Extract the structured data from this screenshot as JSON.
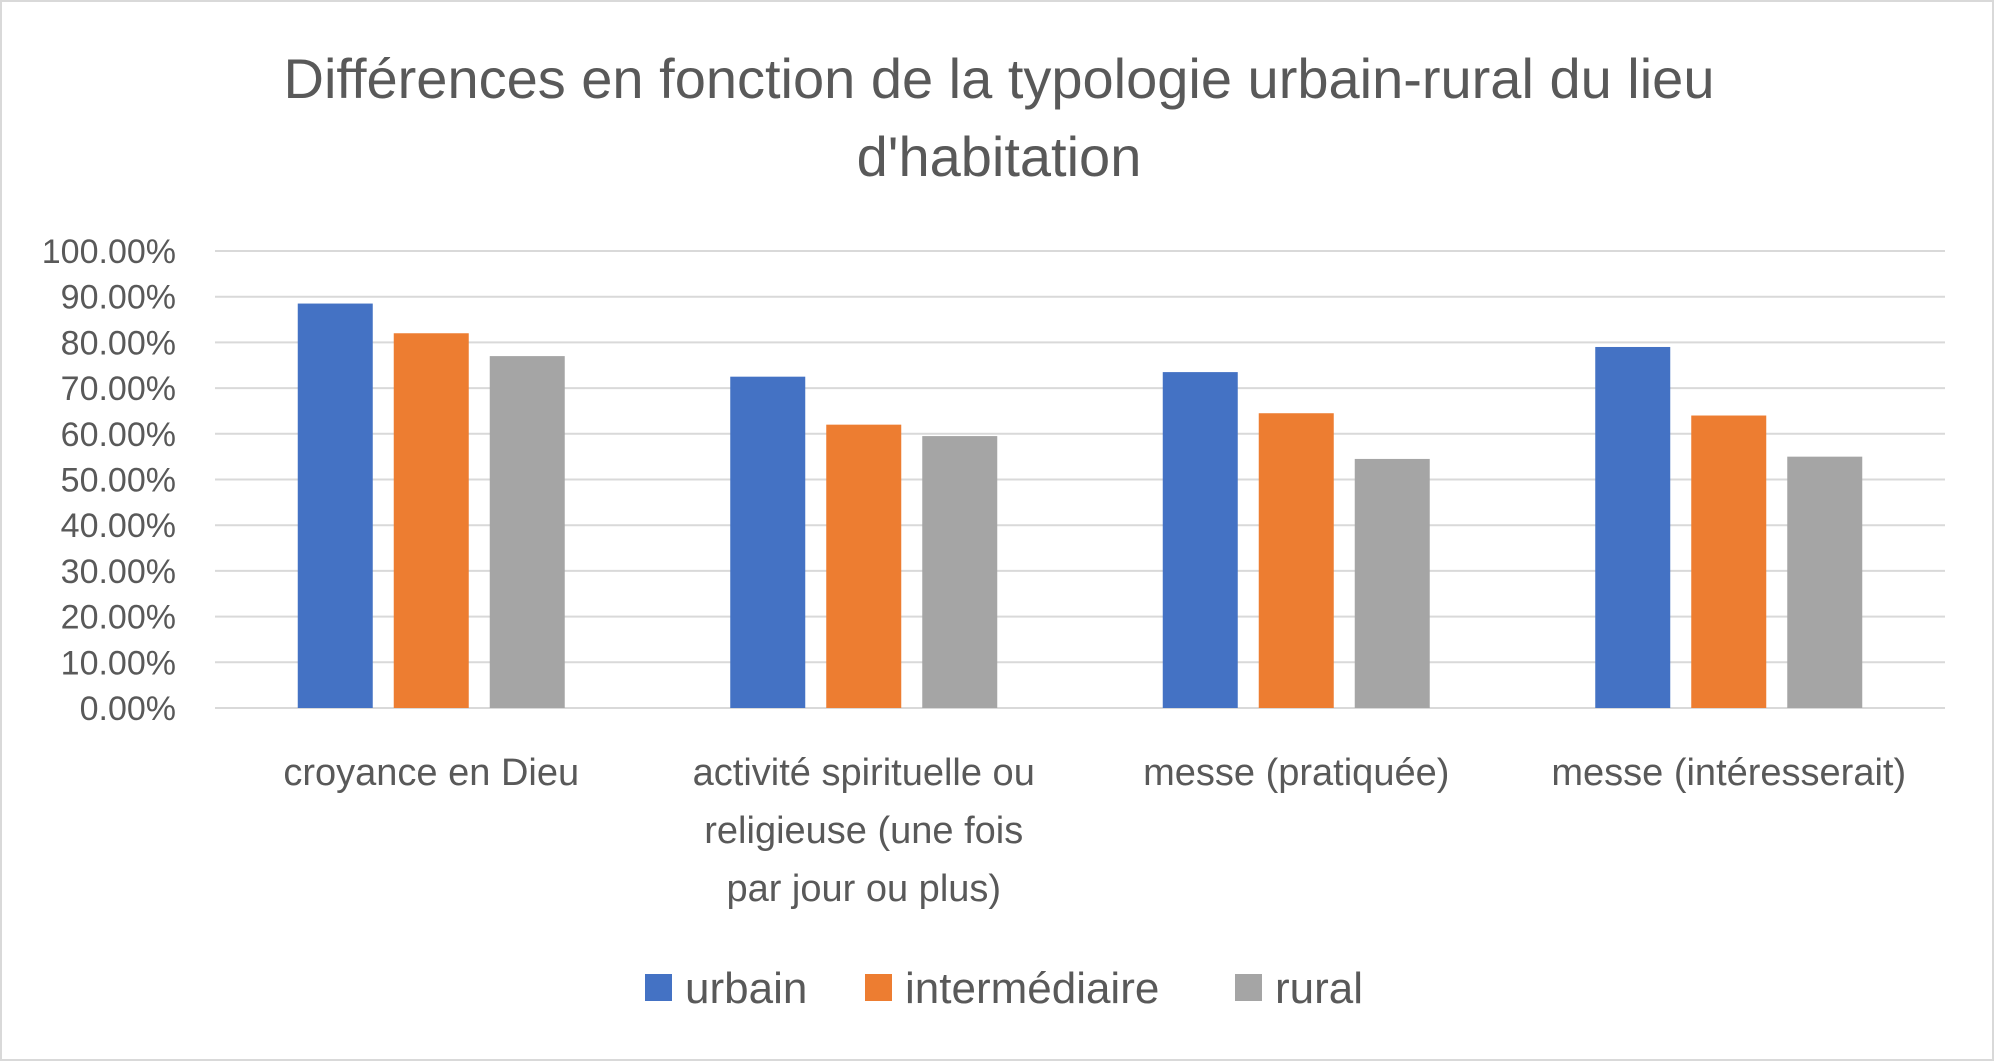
{
  "chart_data": {
    "type": "bar",
    "title_lines": [
      "Différences en fonction de la typologie urbain-rural du lieu",
      "d'habitation"
    ],
    "categories": [
      [
        "croyance en Dieu"
      ],
      [
        "activité spirituelle ou",
        "religieuse (une fois",
        "par jour ou plus)"
      ],
      [
        "messe (pratiquée)"
      ],
      [
        "messe (intéresserait)"
      ]
    ],
    "series": [
      {
        "name": "urbain",
        "color": "#4472c4",
        "values": [
          88.5,
          72.5,
          73.5,
          79.0
        ]
      },
      {
        "name": "intermédiaire",
        "color": "#ed7d31",
        "values": [
          82.0,
          62.0,
          64.5,
          64.0
        ]
      },
      {
        "name": "rural",
        "color": "#a5a5a5",
        "values": [
          77.0,
          59.5,
          54.5,
          55.0
        ]
      }
    ],
    "y_ticks": [
      "0.00%",
      "10.00%",
      "20.00%",
      "30.00%",
      "40.00%",
      "50.00%",
      "60.00%",
      "70.00%",
      "80.00%",
      "90.00%",
      "100.00%"
    ],
    "ylim": [
      0,
      100
    ],
    "xlabel": "",
    "ylabel": "",
    "grid": true,
    "gridline_color": "#d9d9d9",
    "legend_position": "bottom"
  }
}
